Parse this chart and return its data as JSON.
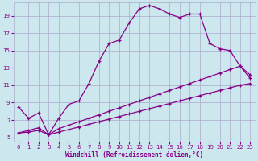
{
  "xlabel": "Windchill (Refroidissement éolien,°C)",
  "bg_color": "#cce8ee",
  "grid_color": "#aaaacc",
  "line_color": "#880088",
  "xlim": [
    -0.5,
    23.5
  ],
  "ylim": [
    4.5,
    20.5
  ],
  "xticks": [
    0,
    1,
    2,
    3,
    4,
    5,
    6,
    7,
    8,
    9,
    10,
    11,
    12,
    13,
    14,
    15,
    16,
    17,
    18,
    19,
    20,
    21,
    22,
    23
  ],
  "yticks": [
    5,
    7,
    9,
    11,
    13,
    15,
    17,
    19
  ],
  "line1_x": [
    0,
    1,
    2,
    3,
    4,
    5,
    6,
    7,
    8,
    9,
    10,
    11,
    12,
    13,
    14,
    15,
    16,
    17,
    18,
    19,
    20,
    21,
    22,
    23
  ],
  "line1_y": [
    8.5,
    7.2,
    7.8,
    5.3,
    7.2,
    8.8,
    9.2,
    11.2,
    13.8,
    15.8,
    16.2,
    18.2,
    19.8,
    20.2,
    19.8,
    19.2,
    18.8,
    19.2,
    19.2,
    15.8,
    15.2,
    15.0,
    13.2,
    12.2
  ],
  "line2_x": [
    0,
    1,
    2,
    3,
    4,
    5,
    6,
    7,
    8,
    9,
    10,
    11,
    12,
    13,
    14,
    15,
    16,
    17,
    18,
    19,
    20,
    21,
    22,
    23
  ],
  "line2_y": [
    5.5,
    5.8,
    6.1,
    5.3,
    6.0,
    6.4,
    6.8,
    7.2,
    7.6,
    8.0,
    8.4,
    8.8,
    9.2,
    9.6,
    10.0,
    10.4,
    10.8,
    11.2,
    11.6,
    12.0,
    12.4,
    12.8,
    13.2,
    11.8
  ],
  "line3_x": [
    0,
    1,
    2,
    3,
    4,
    5,
    6,
    7,
    8,
    9,
    10,
    11,
    12,
    13,
    14,
    15,
    16,
    17,
    18,
    19,
    20,
    21,
    22,
    23
  ],
  "line3_y": [
    5.5,
    5.6,
    5.8,
    5.3,
    5.6,
    5.9,
    6.2,
    6.5,
    6.8,
    7.1,
    7.4,
    7.7,
    8.0,
    8.3,
    8.6,
    8.9,
    9.2,
    9.5,
    9.8,
    10.1,
    10.4,
    10.7,
    11.0,
    11.2
  ]
}
